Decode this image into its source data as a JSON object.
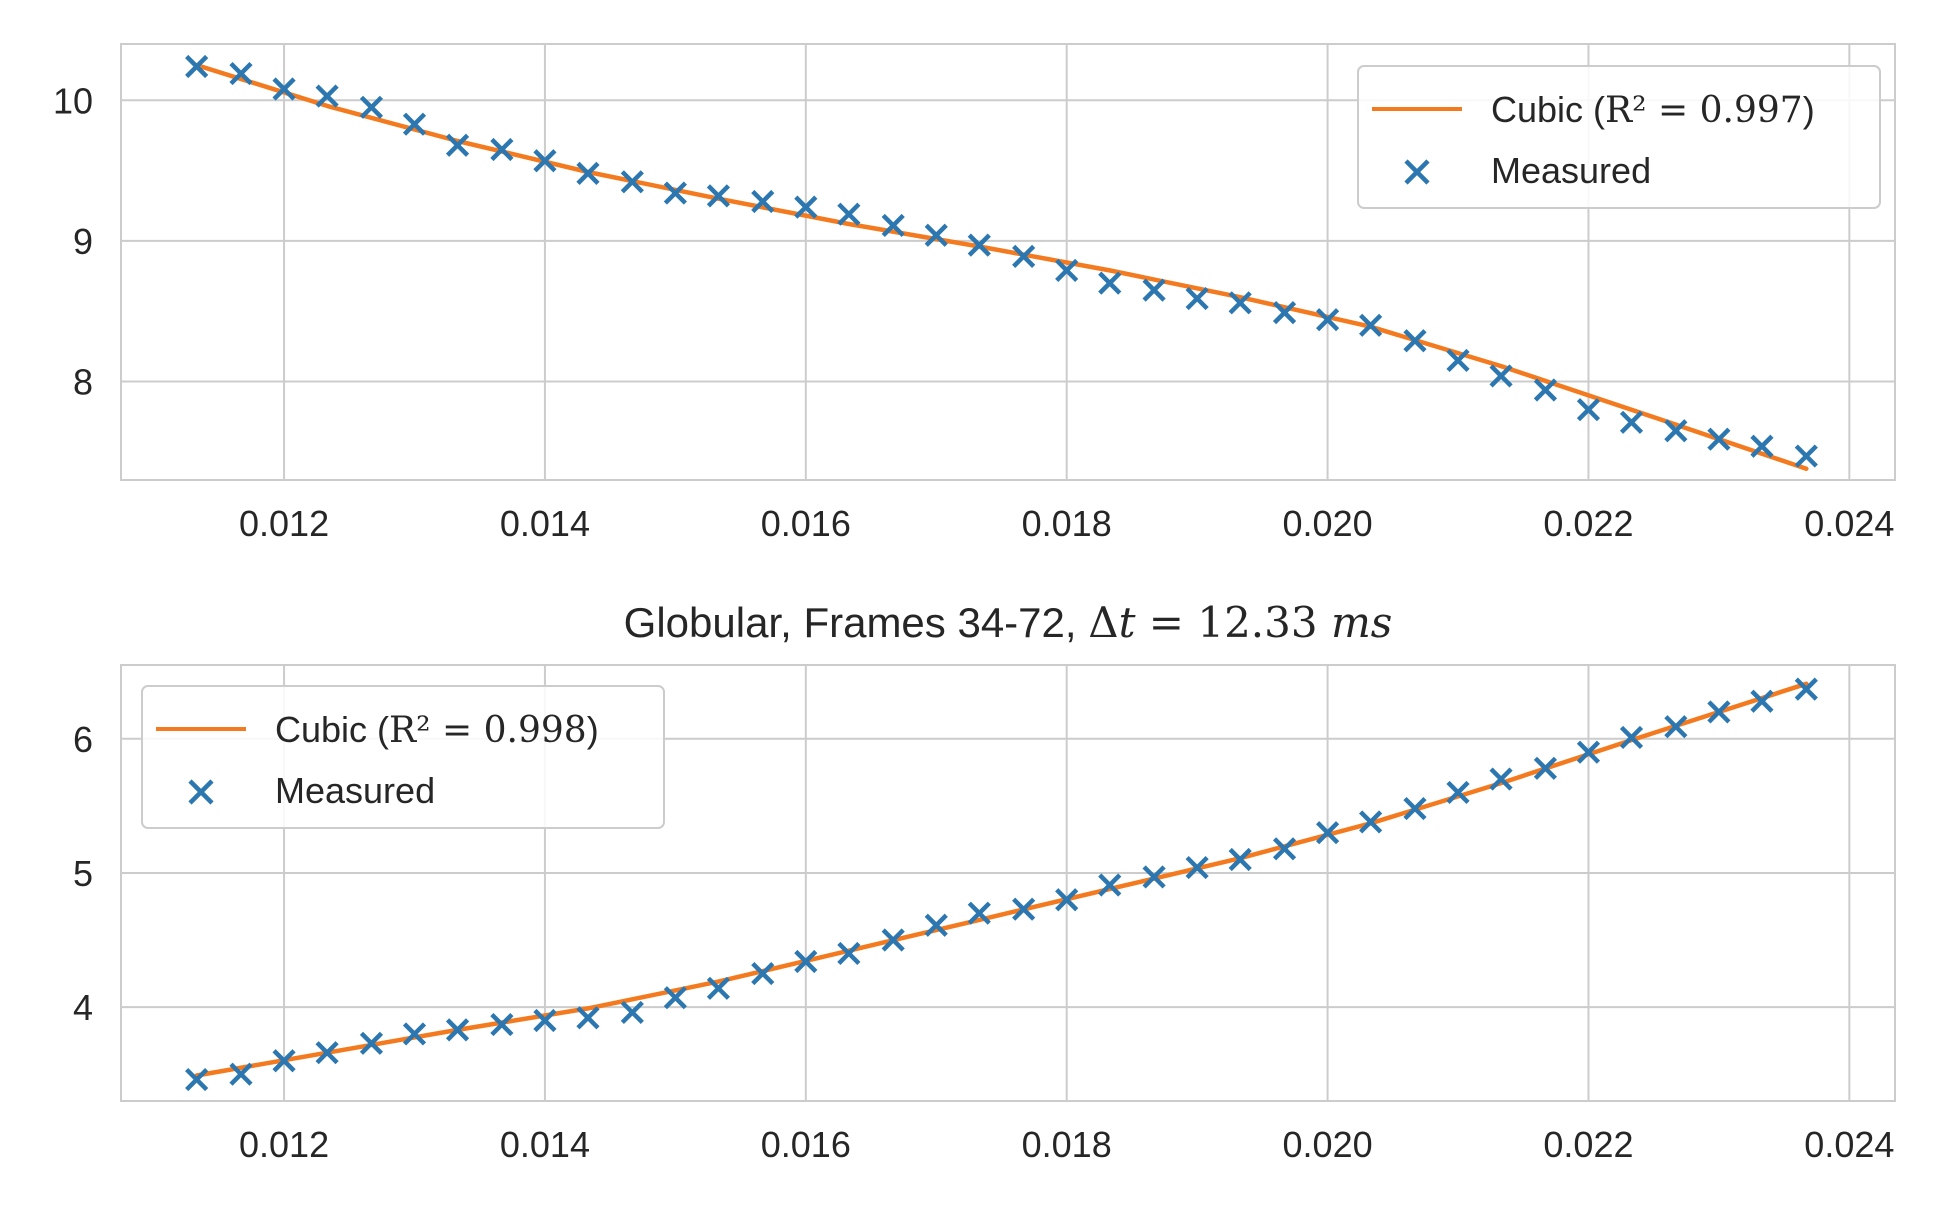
{
  "chart_data": [
    {
      "type": "scatter",
      "title": "",
      "xlabel": "",
      "ylabel": "",
      "xlim": [
        0.01075,
        0.02435
      ],
      "ylim": [
        7.3,
        10.4
      ],
      "x_ticks": [
        0.012,
        0.014,
        0.016,
        0.018,
        0.02,
        0.022,
        0.024
      ],
      "x_tick_labels": [
        "0.012",
        "0.014",
        "0.016",
        "0.018",
        "0.020",
        "0.022",
        "0.024"
      ],
      "y_ticks": [
        8,
        9,
        10
      ],
      "y_tick_labels": [
        "8",
        "9",
        "10"
      ],
      "grid": true,
      "legend_position": "top-right",
      "colors": {
        "fit": "#f47a1f",
        "measured": "#2c77b0"
      },
      "series": [
        {
          "name": "Cubic",
          "legend_prefix": "Cubic (",
          "legend_math": "R² = 0.997",
          "legend_suffix": ")",
          "kind": "line",
          "x": [
            0.01133,
            0.01233,
            0.01333,
            0.01433,
            0.01533,
            0.01633,
            0.01733,
            0.01833,
            0.01933,
            0.02033,
            0.02133,
            0.02233,
            0.02367
          ],
          "y": [
            10.25,
            9.96,
            9.71,
            9.49,
            9.3,
            9.12,
            8.96,
            8.79,
            8.6,
            8.39,
            8.11,
            7.8,
            7.38
          ]
        },
        {
          "name": "Measured",
          "kind": "scatter",
          "marker": "x",
          "x": [
            0.01133,
            0.01167,
            0.012,
            0.01233,
            0.01267,
            0.013,
            0.01333,
            0.01367,
            0.014,
            0.01433,
            0.01467,
            0.015,
            0.01533,
            0.01567,
            0.016,
            0.01633,
            0.01667,
            0.017,
            0.01733,
            0.01767,
            0.018,
            0.01833,
            0.01867,
            0.019,
            0.01933,
            0.01967,
            0.02,
            0.02033,
            0.02067,
            0.021,
            0.02133,
            0.02167,
            0.022,
            0.02233,
            0.02267,
            0.023,
            0.02333,
            0.02367
          ],
          "y": [
            10.24,
            10.19,
            10.08,
            10.03,
            9.95,
            9.83,
            9.68,
            9.65,
            9.57,
            9.48,
            9.42,
            9.34,
            9.32,
            9.28,
            9.24,
            9.19,
            9.11,
            9.04,
            8.97,
            8.89,
            8.79,
            8.7,
            8.65,
            8.59,
            8.56,
            8.49,
            8.44,
            8.4,
            8.29,
            8.15,
            8.04,
            7.94,
            7.8,
            7.71,
            7.65,
            7.59,
            7.54,
            7.47
          ]
        }
      ]
    },
    {
      "type": "scatter",
      "title_prefix": "Globular, Frames 34-72, ",
      "title_math_a": "Δ",
      "title_math_b": "t",
      "title_math_c": " = 12.33 ",
      "title_math_d": "ms",
      "xlabel": "",
      "ylabel": "",
      "xlim": [
        0.01075,
        0.02435
      ],
      "ylim": [
        3.3,
        6.55
      ],
      "x_ticks": [
        0.012,
        0.014,
        0.016,
        0.018,
        0.02,
        0.022,
        0.024
      ],
      "x_tick_labels": [
        "0.012",
        "0.014",
        "0.016",
        "0.018",
        "0.020",
        "0.022",
        "0.024"
      ],
      "y_ticks": [
        4,
        5,
        6
      ],
      "y_tick_labels": [
        "4",
        "5",
        "6"
      ],
      "grid": true,
      "legend_position": "top-left",
      "colors": {
        "fit": "#f47a1f",
        "measured": "#2c77b0"
      },
      "series": [
        {
          "name": "Cubic",
          "legend_prefix": "Cubic (",
          "legend_math": "R² = 0.998",
          "legend_suffix": ")",
          "kind": "line",
          "x": [
            0.01133,
            0.01233,
            0.01333,
            0.01433,
            0.01533,
            0.01633,
            0.01733,
            0.01833,
            0.01933,
            0.02033,
            0.02133,
            0.02233,
            0.02367
          ],
          "y": [
            3.49,
            3.66,
            3.83,
            3.99,
            4.19,
            4.42,
            4.65,
            4.88,
            5.11,
            5.37,
            5.67,
            5.99,
            6.41
          ]
        },
        {
          "name": "Measured",
          "kind": "scatter",
          "marker": "x",
          "x": [
            0.01133,
            0.01167,
            0.012,
            0.01233,
            0.01267,
            0.013,
            0.01333,
            0.01367,
            0.014,
            0.01433,
            0.01467,
            0.015,
            0.01533,
            0.01567,
            0.016,
            0.01633,
            0.01667,
            0.017,
            0.01733,
            0.01767,
            0.018,
            0.01833,
            0.01867,
            0.019,
            0.01933,
            0.01967,
            0.02,
            0.02033,
            0.02067,
            0.021,
            0.02133,
            0.02167,
            0.022,
            0.02233,
            0.02267,
            0.023,
            0.02333,
            0.02367
          ],
          "y": [
            3.46,
            3.5,
            3.6,
            3.66,
            3.73,
            3.8,
            3.83,
            3.87,
            3.9,
            3.92,
            3.96,
            4.07,
            4.14,
            4.25,
            4.34,
            4.4,
            4.5,
            4.61,
            4.7,
            4.73,
            4.8,
            4.91,
            4.97,
            5.04,
            5.1,
            5.18,
            5.3,
            5.38,
            5.48,
            5.6,
            5.7,
            5.78,
            5.9,
            6.01,
            6.09,
            6.2,
            6.28,
            6.37
          ]
        }
      ]
    }
  ]
}
